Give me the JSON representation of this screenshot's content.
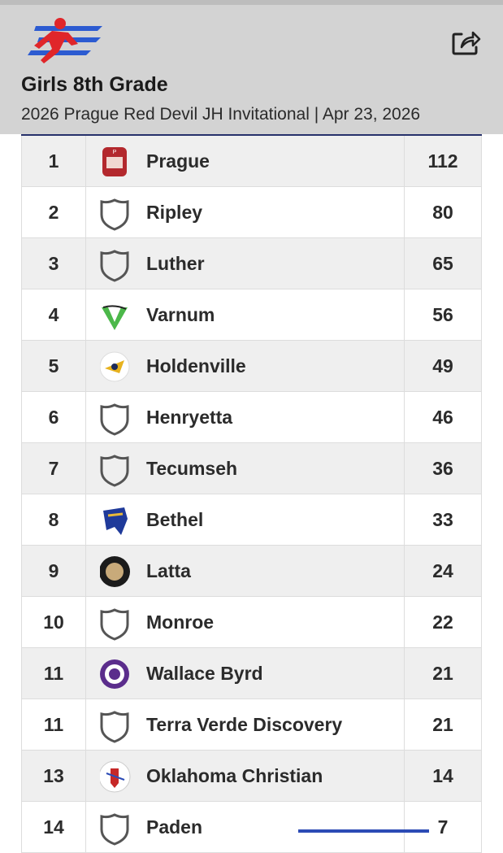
{
  "header": {
    "title": "Girls 8th Grade",
    "subtitle": "2026 Prague Red Devil JH Invitational | Apr 23, 2026"
  },
  "table": {
    "rows": [
      [
        1,
        "Prague",
        112
      ],
      [
        2,
        "Ripley",
        80
      ],
      [
        3,
        "Luther",
        65
      ],
      [
        4,
        "Varnum",
        56
      ],
      [
        5,
        "Holdenville",
        49
      ],
      [
        6,
        "Henryetta",
        46
      ],
      [
        7,
        "Tecumseh",
        36
      ],
      [
        8,
        "Bethel",
        33
      ],
      [
        9,
        "Latta",
        24
      ],
      [
        10,
        "Monroe",
        22
      ],
      [
        11,
        "Wallace Byrd",
        21
      ],
      [
        11,
        "Terra Verde Discovery",
        21
      ],
      [
        13,
        "Oklahoma Christian",
        14
      ],
      [
        14,
        "Paden",
        7
      ]
    ]
  }
}
